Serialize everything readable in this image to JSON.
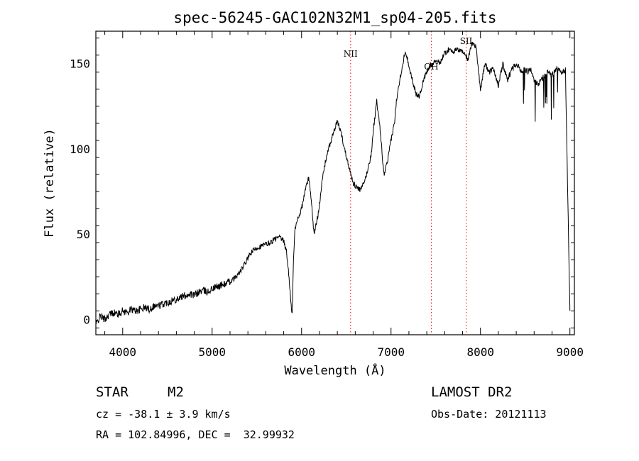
{
  "chart_data": {
    "type": "line",
    "title": "spec-56245-GAC102N32M1_sp04-205.fits",
    "xlabel": "Wavelength (Å)",
    "ylabel": "Flux (relative)",
    "xlim": [
      3700,
      9050
    ],
    "ylim": [
      -9,
      169
    ],
    "x_ticks": [
      4000,
      5000,
      6000,
      7000,
      8000,
      9000
    ],
    "y_ticks": [
      0,
      50,
      100,
      150
    ],
    "grid": false,
    "series": [
      {
        "x": [
          3700,
          3750,
          3800,
          3850,
          3900,
          3950,
          4000,
          4050,
          4100,
          4150,
          4200,
          4250,
          4300,
          4350,
          4400,
          4450,
          4500,
          4550,
          4600,
          4650,
          4700,
          4750,
          4800,
          4850,
          4900,
          4950,
          5000,
          5050,
          5100,
          5150,
          5200,
          5250,
          5300,
          5350,
          5400,
          5450,
          5500,
          5550,
          5600,
          5650,
          5700,
          5750,
          5800,
          5830,
          5860,
          5880,
          5890,
          5895,
          5900,
          5910,
          5925,
          5950,
          6000,
          6050,
          6080,
          6100,
          6120,
          6140,
          6160,
          6180,
          6200,
          6220,
          6250,
          6280,
          6320,
          6360,
          6400,
          6440,
          6480,
          6520,
          6550,
          6580,
          6620,
          6660,
          6700,
          6740,
          6780,
          6800,
          6840,
          6880,
          6920,
          6960,
          7000,
          7040,
          7060,
          7080,
          7100,
          7120,
          7140,
          7160,
          7200,
          7240,
          7280,
          7320,
          7360,
          7400,
          7440,
          7480,
          7520,
          7540,
          7560,
          7580,
          7600,
          7640,
          7680,
          7700,
          7740,
          7780,
          7820,
          7860,
          7900,
          7950,
          8000,
          8050,
          8100,
          8150,
          8200,
          8250,
          8300,
          8350,
          8400,
          8450,
          8500,
          8530,
          8560,
          8600,
          8650,
          8700,
          8750,
          8800,
          8850,
          8900,
          8950,
          9000
        ],
        "y": [
          -3,
          2,
          0,
          3,
          4,
          3,
          5,
          4,
          6,
          5,
          6,
          7,
          6,
          8,
          8,
          9,
          10,
          11,
          12,
          13,
          14,
          15,
          14,
          16,
          17,
          16,
          18,
          19,
          20,
          21,
          22,
          24,
          27,
          31,
          36,
          40,
          42,
          43,
          44,
          45,
          47,
          48,
          46,
          40,
          25,
          10,
          3,
          5,
          15,
          35,
          52,
          58,
          65,
          78,
          83,
          75,
          62,
          50,
          55,
          60,
          68,
          77,
          88,
          96,
          103,
          110,
          116,
          110,
          100,
          92,
          85,
          80,
          77,
          76,
          80,
          88,
          97,
          110,
          128,
          110,
          85,
          92,
          105,
          116,
          128,
          136,
          141,
          147,
          152,
          158,
          149,
          140,
          132,
          131,
          140,
          145,
          149,
          151,
          152,
          150,
          152,
          154,
          156,
          158,
          158,
          157,
          158,
          158,
          156,
          152,
          162,
          160,
          135,
          150,
          145,
          147,
          137,
          150,
          140,
          147,
          150,
          146,
          147,
          145,
          147,
          140,
          138,
          142,
          145,
          143,
          147,
          145,
          146,
          5
        ]
      }
    ],
    "annotations": [
      {
        "x": 6548,
        "label": "NII"
      },
      {
        "x": 7450,
        "label": "OH"
      },
      {
        "x": 7840,
        "label": "SII"
      }
    ],
    "line_color": "#000000",
    "marker_color": "#ff0000"
  },
  "info": {
    "object_type": "STAR",
    "subclass": "M2",
    "cz": "cz = -38.1 ± 3.9 km/s",
    "coords": "RA = 102.84996, DEC =  32.99932",
    "survey": "LAMOST DR2",
    "obs_date": "Obs-Date: 20121113"
  }
}
